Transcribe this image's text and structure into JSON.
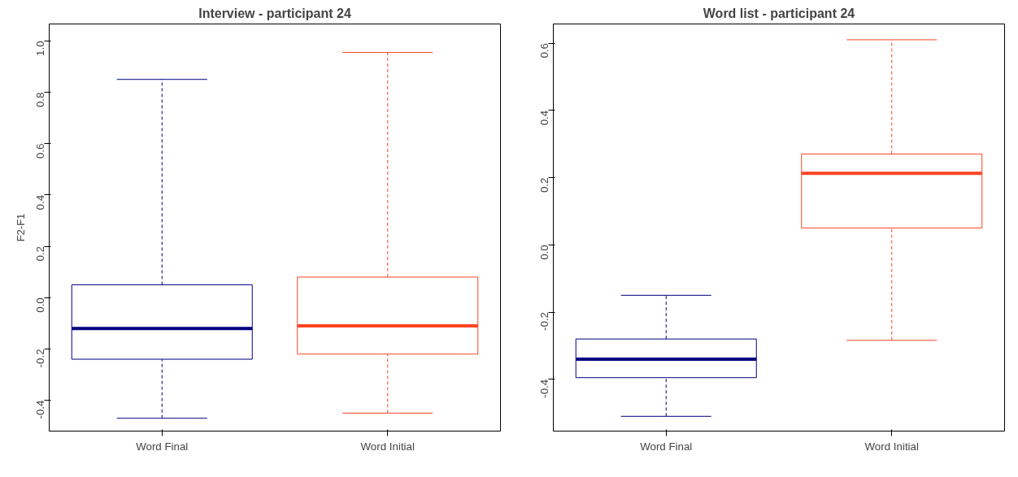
{
  "chart_data": [
    {
      "type": "box",
      "title": "Interview - participant 24",
      "ylabel": "F2-F1",
      "categories": [
        "Word Final",
        "Word Initial"
      ],
      "colors": [
        "#000080",
        "#ff4422"
      ],
      "boxes": [
        {
          "low": -0.47,
          "q1": -0.24,
          "median": -0.12,
          "q3": 0.05,
          "high": 0.85
        },
        {
          "low": -0.45,
          "q1": -0.22,
          "median": -0.11,
          "q3": 0.08,
          "high": 0.955
        }
      ],
      "ylim": [
        -0.52,
        1.066
      ],
      "yticks": [
        {
          "value": -0.4,
          "label": "-0.4"
        },
        {
          "value": -0.2,
          "label": "-0.2"
        },
        {
          "value": 0,
          "label": "0.0"
        },
        {
          "value": 0.2,
          "label": "0.2"
        },
        {
          "value": 0.4,
          "label": "0.4"
        },
        {
          "value": 0.6,
          "label": "0.6"
        },
        {
          "value": 0.8,
          "label": "0.8"
        },
        {
          "value": 1,
          "label": "1.0"
        }
      ],
      "grid": false,
      "line_style": "dashed"
    },
    {
      "type": "box",
      "title": "Word list - participant 24",
      "categories": [
        "Word Final",
        "Word Initial"
      ],
      "colors": [
        "#000080",
        "#ff4422"
      ],
      "boxes": [
        {
          "low": -0.51,
          "q1": -0.395,
          "median": -0.34,
          "q3": -0.28,
          "high": -0.15
        },
        {
          "low": -0.284,
          "q1": 0.05,
          "median": 0.213,
          "q3": 0.27,
          "high": 0.61
        }
      ],
      "ylim": [
        -0.554,
        0.657
      ],
      "yticks": [
        {
          "value": -0.4,
          "label": "-0.4"
        },
        {
          "value": -0.2,
          "label": "-0.2"
        },
        {
          "value": 0,
          "label": "0.0"
        },
        {
          "value": 0.2,
          "label": "0.2"
        },
        {
          "value": 0.4,
          "label": "0.4"
        },
        {
          "value": 0.6,
          "label": "0.6"
        }
      ],
      "grid": false,
      "line_style": "dashed"
    }
  ]
}
